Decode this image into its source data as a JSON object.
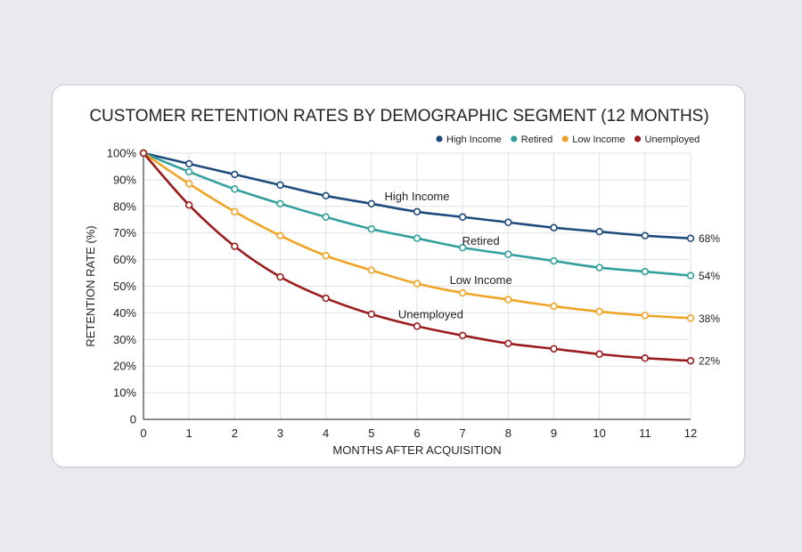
{
  "chart_data": {
    "type": "line",
    "title": "CUSTOMER RETENTION RATES BY DEMOGRAPHIC SEGMENT (12 MONTHS)",
    "xlabel": "MONTHS AFTER ACQUISITION",
    "ylabel": "RETENTION RATE (%)",
    "x": [
      0,
      1,
      2,
      3,
      4,
      5,
      6,
      7,
      8,
      9,
      10,
      11,
      12
    ],
    "xlim": [
      0,
      12
    ],
    "ylim": [
      0,
      100
    ],
    "y_ticks": [
      {
        "value": 0,
        "label": "0"
      },
      {
        "value": 10,
        "label": "10%"
      },
      {
        "value": 20,
        "label": "20%"
      },
      {
        "value": 30,
        "label": "30%"
      },
      {
        "value": 40,
        "label": "40%"
      },
      {
        "value": 50,
        "label": "50%"
      },
      {
        "value": 60,
        "label": "60%"
      },
      {
        "value": 70,
        "label": "70%"
      },
      {
        "value": 80,
        "label": "80%"
      },
      {
        "value": 90,
        "label": "90%"
      },
      {
        "value": 100,
        "label": "100%"
      }
    ],
    "x_tick_labels": [
      "0",
      "1",
      "2",
      "3",
      "4",
      "5",
      "6",
      "7",
      "8",
      "9",
      "10",
      "11",
      "12"
    ],
    "grid": true,
    "legend_position": "top-right",
    "series": [
      {
        "name": "High Income",
        "color": "#1f4a7c",
        "values": [
          100,
          96,
          92,
          88,
          84,
          81,
          78,
          76,
          74,
          72,
          70.5,
          69,
          68
        ],
        "inline_label": "High Income",
        "end_label": "68%"
      },
      {
        "name": "Retired",
        "color": "#32a09c",
        "values": [
          100,
          93,
          86.5,
          81,
          76,
          71.5,
          68,
          64.5,
          62,
          59.5,
          57,
          55.5,
          54
        ],
        "inline_label": "Retired",
        "end_label": "54%"
      },
      {
        "name": "Low Income",
        "color": "#f0a426",
        "values": [
          100,
          88.5,
          78,
          69,
          61.5,
          56,
          51,
          47.5,
          45,
          42.5,
          40.5,
          39,
          38
        ],
        "inline_label": "Low Income",
        "end_label": "38%"
      },
      {
        "name": "Unemployed",
        "color": "#9b1c1c",
        "values": [
          100,
          80.5,
          65,
          53.5,
          45.5,
          39.5,
          35,
          31.5,
          28.5,
          26.5,
          24.5,
          23,
          22
        ],
        "inline_label": "Unemployed",
        "end_label": "22%"
      }
    ]
  }
}
